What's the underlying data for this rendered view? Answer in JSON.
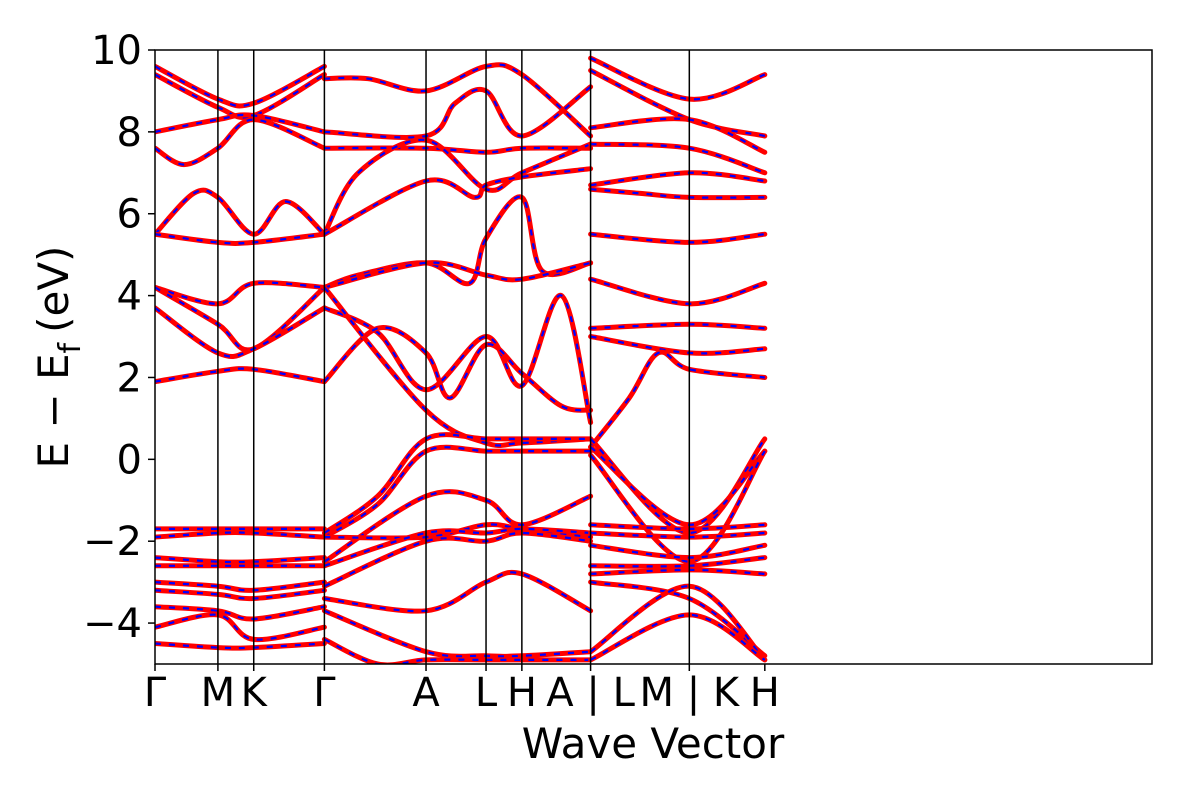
{
  "chart_data": {
    "type": "line",
    "title": "",
    "xlabel": "Wave Vector",
    "ylabel_main": "E − E",
    "ylabel_sub": "f",
    "ylabel_unit": "(eV)",
    "ylim": [
      -5,
      10
    ],
    "yticks": [
      -4,
      -2,
      0,
      2,
      4,
      6,
      8,
      10
    ],
    "ytick_labels": [
      "−4",
      "−2",
      "0",
      "2",
      "4",
      "6",
      "8",
      "10"
    ],
    "xlim": [
      0,
      10.3
    ],
    "kpoint_positions": [
      0,
      0.65,
      1.02,
      1.75,
      2.8,
      3.42,
      3.79,
      4.5,
      5.52,
      6.3
    ],
    "kpoint_labels": [
      "Γ",
      "M",
      "K",
      "Γ",
      "A",
      "L",
      "H",
      "A | L",
      "M | K",
      "H"
    ],
    "grid": false,
    "legend": "none",
    "series_colors": {
      "primary": "#ff0000",
      "overlay": "#0000ff"
    },
    "series": [
      {
        "x": [
          0,
          0.65,
          1.02,
          1.75
        ],
        "y": [
          9.6,
          8.8,
          8.7,
          9.6
        ]
      },
      {
        "x": [
          0,
          0.65,
          1.02,
          1.75
        ],
        "y": [
          9.4,
          8.6,
          8.4,
          9.4
        ]
      },
      {
        "x": [
          0,
          0.65,
          1.02,
          1.75
        ],
        "y": [
          8.0,
          8.3,
          8.4,
          8.0
        ]
      },
      {
        "x": [
          0,
          0.3,
          0.65,
          1.02,
          1.75
        ],
        "y": [
          7.6,
          7.2,
          7.6,
          8.3,
          7.6
        ]
      },
      {
        "x": [
          0,
          0.4,
          0.65,
          1.02,
          1.35,
          1.75
        ],
        "y": [
          5.5,
          6.5,
          6.4,
          5.5,
          6.3,
          5.5
        ]
      },
      {
        "x": [
          0,
          0.65,
          1.02,
          1.75
        ],
        "y": [
          5.5,
          5.3,
          5.3,
          5.5
        ]
      },
      {
        "x": [
          0,
          0.65,
          1.02,
          1.75
        ],
        "y": [
          4.2,
          3.8,
          4.3,
          4.2
        ]
      },
      {
        "x": [
          0,
          0.65,
          1.02,
          1.75
        ],
        "y": [
          4.2,
          3.3,
          2.7,
          4.2
        ]
      },
      {
        "x": [
          0,
          0.65,
          1.02,
          1.75
        ],
        "y": [
          3.7,
          2.6,
          2.7,
          3.7
        ]
      },
      {
        "x": [
          0,
          0.65,
          1.02,
          1.75
        ],
        "y": [
          1.9,
          2.15,
          2.2,
          1.9
        ]
      },
      {
        "x": [
          0,
          0.65,
          1.02,
          1.75
        ],
        "y": [
          -1.7,
          -1.7,
          -1.7,
          -1.7
        ]
      },
      {
        "x": [
          0,
          0.65,
          1.02,
          1.75
        ],
        "y": [
          -1.9,
          -1.8,
          -1.8,
          -1.9
        ]
      },
      {
        "x": [
          0,
          0.65,
          1.02,
          1.75
        ],
        "y": [
          -2.4,
          -2.5,
          -2.5,
          -2.4
        ]
      },
      {
        "x": [
          0,
          0.65,
          1.02,
          1.75
        ],
        "y": [
          -2.6,
          -2.6,
          -2.6,
          -2.6
        ]
      },
      {
        "x": [
          0,
          0.65,
          1.02,
          1.75
        ],
        "y": [
          -3.0,
          -3.1,
          -3.2,
          -3.0
        ]
      },
      {
        "x": [
          0,
          0.65,
          1.02,
          1.75
        ],
        "y": [
          -3.2,
          -3.3,
          -3.4,
          -3.2
        ]
      },
      {
        "x": [
          0,
          0.65,
          1.02,
          1.75
        ],
        "y": [
          -3.6,
          -3.7,
          -3.9,
          -3.6
        ]
      },
      {
        "x": [
          0,
          0.65,
          1.02,
          1.75
        ],
        "y": [
          -4.1,
          -3.8,
          -4.4,
          -4.1
        ]
      },
      {
        "x": [
          0,
          0.65,
          1.02,
          1.75
        ],
        "y": [
          -4.5,
          -4.6,
          -4.6,
          -4.5
        ]
      },
      {
        "x": [
          1.75,
          2.2,
          2.8,
          3.42,
          3.79,
          4.5
        ],
        "y": [
          9.3,
          9.3,
          9.0,
          9.6,
          9.4,
          7.9
        ]
      },
      {
        "x": [
          1.75,
          2.8,
          3.1,
          3.42,
          3.79,
          4.5
        ],
        "y": [
          8.0,
          7.9,
          8.7,
          9.0,
          7.9,
          9.1
        ]
      },
      {
        "x": [
          1.75,
          2.8,
          3.42,
          3.79,
          4.5
        ],
        "y": [
          7.6,
          7.6,
          7.5,
          7.6,
          7.6
        ]
      },
      {
        "x": [
          1.75,
          2.1,
          2.8,
          3.42,
          3.79,
          4.5
        ],
        "y": [
          5.5,
          7.0,
          7.8,
          6.6,
          7.0,
          7.7
        ]
      },
      {
        "x": [
          1.75,
          2.8,
          3.3,
          3.42,
          3.79,
          4.5
        ],
        "y": [
          5.5,
          6.8,
          6.4,
          6.7,
          6.9,
          7.1
        ]
      },
      {
        "x": [
          1.75,
          2.1,
          2.8,
          3.25,
          3.42,
          3.79,
          4.0,
          4.5
        ],
        "y": [
          4.2,
          4.5,
          4.8,
          4.3,
          5.4,
          6.4,
          4.6,
          4.8
        ]
      },
      {
        "x": [
          1.75,
          2.8,
          3.42,
          3.79,
          4.5
        ],
        "y": [
          4.2,
          4.8,
          4.5,
          4.4,
          4.8
        ]
      },
      {
        "x": [
          1.75,
          2.3,
          2.8,
          3.42,
          3.79,
          4.2,
          4.5
        ],
        "y": [
          3.7,
          3.1,
          1.7,
          3.0,
          1.8,
          4.0,
          0.9
        ]
      },
      {
        "x": [
          1.75,
          2.3,
          2.8,
          3.05,
          3.42,
          3.79,
          4.2,
          4.5
        ],
        "y": [
          1.9,
          3.2,
          2.6,
          1.5,
          2.8,
          2.1,
          1.3,
          1.2
        ]
      },
      {
        "x": [
          1.75,
          2.8,
          3.42,
          3.79,
          4.5
        ],
        "y": [
          4.2,
          1.2,
          0.4,
          0.4,
          0.5
        ]
      },
      {
        "x": [
          1.75,
          2.3,
          2.8,
          3.42,
          3.79,
          4.5
        ],
        "y": [
          -1.8,
          -0.9,
          0.5,
          0.5,
          0.5,
          0.5
        ]
      },
      {
        "x": [
          1.75,
          2.3,
          2.8,
          3.42,
          3.79,
          4.5
        ],
        "y": [
          -1.9,
          -1.1,
          0.2,
          0.2,
          0.2,
          0.2
        ]
      },
      {
        "x": [
          1.75,
          2.8,
          3.42,
          3.79,
          4.5
        ],
        "y": [
          -2.5,
          -0.9,
          -1.0,
          -1.6,
          -0.9
        ]
      },
      {
        "x": [
          1.75,
          2.8,
          3.42,
          3.79,
          4.5
        ],
        "y": [
          -1.9,
          -1.9,
          -1.6,
          -1.7,
          -1.9
        ]
      },
      {
        "x": [
          1.75,
          2.8,
          3.42,
          3.79,
          4.5
        ],
        "y": [
          -2.6,
          -1.8,
          -1.8,
          -1.7,
          -1.8
        ]
      },
      {
        "x": [
          1.75,
          2.8,
          3.42,
          3.79,
          4.5
        ],
        "y": [
          -3.1,
          -2.0,
          -2.0,
          -1.8,
          -2.0
        ]
      },
      {
        "x": [
          1.75,
          2.8,
          3.42,
          3.79,
          4.5
        ],
        "y": [
          -3.4,
          -3.7,
          -3.0,
          -2.8,
          -3.7
        ]
      },
      {
        "x": [
          1.75,
          2.8,
          3.42,
          3.79,
          4.5
        ],
        "y": [
          -3.7,
          -4.7,
          -4.8,
          -4.8,
          -4.7
        ]
      },
      {
        "x": [
          1.75,
          2.3,
          2.8,
          3.42,
          3.79,
          4.5
        ],
        "y": [
          -4.4,
          -5.0,
          -4.9,
          -4.9,
          -4.9,
          -4.9
        ]
      },
      {
        "x": [
          4.5,
          5.52,
          6.3
        ],
        "y": [
          9.8,
          8.8,
          9.4
        ]
      },
      {
        "x": [
          4.5,
          5.52,
          6.3
        ],
        "y": [
          9.5,
          8.3,
          7.9
        ]
      },
      {
        "x": [
          4.5,
          5.52,
          6.3
        ],
        "y": [
          8.1,
          8.3,
          7.5
        ]
      },
      {
        "x": [
          4.5,
          5.52,
          6.3
        ],
        "y": [
          7.7,
          7.6,
          7.0
        ]
      },
      {
        "x": [
          4.5,
          5.52,
          6.3
        ],
        "y": [
          6.7,
          7.0,
          6.8
        ]
      },
      {
        "x": [
          4.5,
          5.0,
          5.52,
          6.3
        ],
        "y": [
          6.6,
          6.5,
          6.4,
          6.4
        ]
      },
      {
        "x": [
          4.5,
          5.52,
          6.3
        ],
        "y": [
          5.5,
          5.3,
          5.5
        ]
      },
      {
        "x": [
          4.5,
          5.52,
          6.3
        ],
        "y": [
          4.4,
          3.8,
          4.3
        ]
      },
      {
        "x": [
          4.5,
          5.52,
          6.3
        ],
        "y": [
          3.2,
          3.3,
          3.2
        ]
      },
      {
        "x": [
          4.5,
          5.52,
          6.3
        ],
        "y": [
          3.0,
          2.6,
          2.7
        ]
      },
      {
        "x": [
          4.5,
          4.9,
          5.2,
          5.52,
          6.3
        ],
        "y": [
          0.3,
          1.5,
          2.6,
          2.2,
          2.0
        ]
      },
      {
        "x": [
          4.5,
          5.52,
          6.3
        ],
        "y": [
          0.5,
          -1.8,
          0.5
        ]
      },
      {
        "x": [
          4.5,
          5.52,
          6.3
        ],
        "y": [
          0.3,
          -1.6,
          0.2
        ]
      },
      {
        "x": [
          4.5,
          5.52,
          6.3
        ],
        "y": [
          0.1,
          -2.5,
          0.2
        ]
      },
      {
        "x": [
          4.5,
          5.52,
          6.3
        ],
        "y": [
          -1.6,
          -1.7,
          -1.6
        ]
      },
      {
        "x": [
          4.5,
          5.52,
          6.3
        ],
        "y": [
          -1.8,
          -1.9,
          -1.8
        ]
      },
      {
        "x": [
          4.5,
          5.52,
          6.3
        ],
        "y": [
          -2.1,
          -2.4,
          -2.1
        ]
      },
      {
        "x": [
          4.5,
          5.52,
          6.3
        ],
        "y": [
          -2.6,
          -2.6,
          -2.4
        ]
      },
      {
        "x": [
          4.5,
          5.52,
          6.3
        ],
        "y": [
          -2.8,
          -2.7,
          -2.8
        ]
      },
      {
        "x": [
          4.5,
          5.52,
          6.3
        ],
        "y": [
          -3.0,
          -3.4,
          -4.8
        ]
      },
      {
        "x": [
          4.5,
          5.52,
          6.3
        ],
        "y": [
          -4.7,
          -3.1,
          -4.9
        ]
      },
      {
        "x": [
          4.5,
          5.52,
          6.3
        ],
        "y": [
          -4.9,
          -3.8,
          -4.9
        ]
      }
    ]
  }
}
